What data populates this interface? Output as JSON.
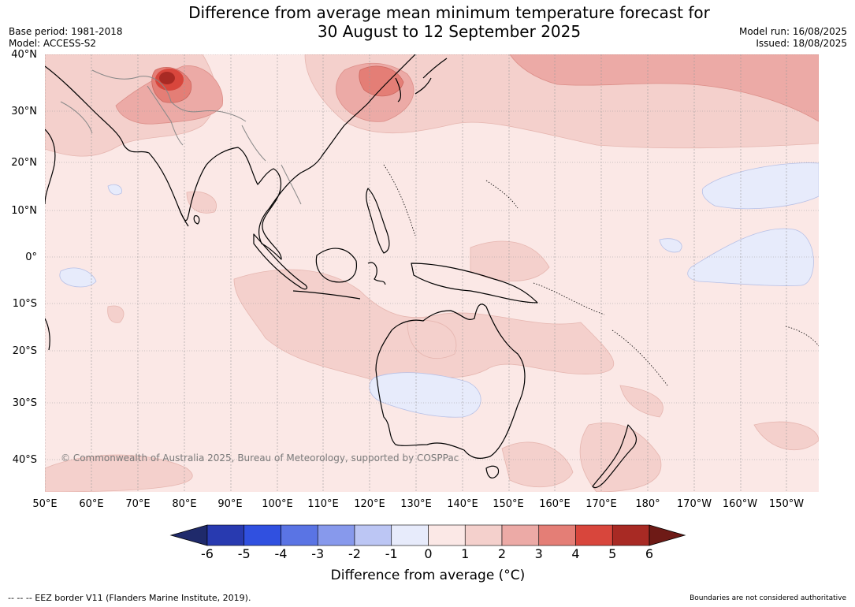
{
  "title": {
    "line1": "Difference from average mean minimum temperature forecast for",
    "line2": "30 August to 12 September 2025"
  },
  "meta": {
    "base_period": "Base period: 1981-2018",
    "model": "Model: ACCESS-S2",
    "model_run": "Model run: 16/08/2025",
    "issued": "Issued: 18/08/2025"
  },
  "map": {
    "lat_labels": [
      "40°N",
      "30°N",
      "20°N",
      "10°N",
      "0°",
      "10°S",
      "20°S",
      "30°S",
      "40°S"
    ],
    "lon_labels": [
      "50°E",
      "60°E",
      "70°E",
      "80°E",
      "90°E",
      "100°E",
      "110°E",
      "120°E",
      "130°E",
      "140°E",
      "150°E",
      "160°E",
      "170°E",
      "180°",
      "170°W",
      "160°W",
      "150°W"
    ],
    "copyright": "© Commonwealth of Australia 2025, Bureau of Meteorology, supported by COSPPac",
    "background_color": "#fbe8e6"
  },
  "colorbar": {
    "ticks": [
      "-6",
      "-5",
      "-4",
      "-3",
      "-2",
      "-1",
      "0",
      "1",
      "2",
      "3",
      "4",
      "5",
      "6"
    ],
    "colors": [
      "#1f2a6b",
      "#283ab0",
      "#3050e0",
      "#5a74e4",
      "#8799ec",
      "#bcc6f4",
      "#e7ebfb",
      "#fbe8e6",
      "#f4d0cc",
      "#ecaaa6",
      "#e47e76",
      "#d8463c",
      "#a82a24",
      "#6e1a16"
    ],
    "label": "Difference from average (°C)"
  },
  "footer": {
    "left": "--  --  -- EEZ border V11 (Flanders Marine Institute, 2019).",
    "right": "Boundaries are not considered authoritative"
  }
}
